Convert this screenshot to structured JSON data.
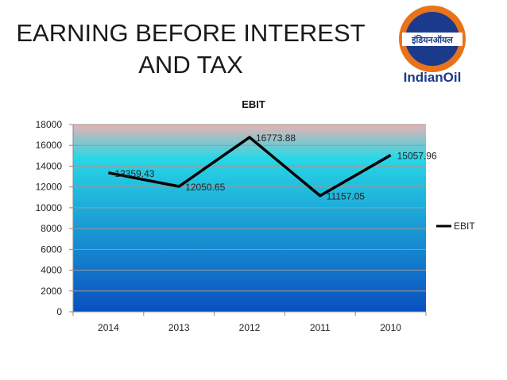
{
  "slide": {
    "title_line1": "EARNING BEFORE INTEREST",
    "title_line2": "AND TAX"
  },
  "logo": {
    "brand_text": "IndianOil",
    "hindi_text": "इंडियनऑयल",
    "colors": {
      "outer": "#e8731a",
      "inner": "#1b3a8c",
      "band": "#ffffff"
    }
  },
  "colors": {
    "line": "#000000",
    "plot_top": "#e8b3b3",
    "plot_mid": "#28d7e6",
    "plot_bottom": "#0a4fbf",
    "grid": "#9a9a9a"
  },
  "chart_data": {
    "type": "line",
    "title": "EBIT",
    "categories": [
      "2014",
      "2013",
      "2012",
      "2011",
      "2010"
    ],
    "series": [
      {
        "name": "EBIT",
        "values": [
          13359.43,
          12050.65,
          16773.88,
          11157.05,
          15057.96
        ]
      }
    ],
    "data_labels": [
      "13359.43",
      "12050.65",
      "16773.88",
      "11157.05",
      "15057.96"
    ],
    "ylim": [
      0,
      18000
    ],
    "yticks": [
      "0",
      "2000",
      "4000",
      "6000",
      "8000",
      "10000",
      "12000",
      "14000",
      "16000",
      "18000"
    ],
    "legend_position": "right",
    "xlabel": "",
    "ylabel": ""
  }
}
